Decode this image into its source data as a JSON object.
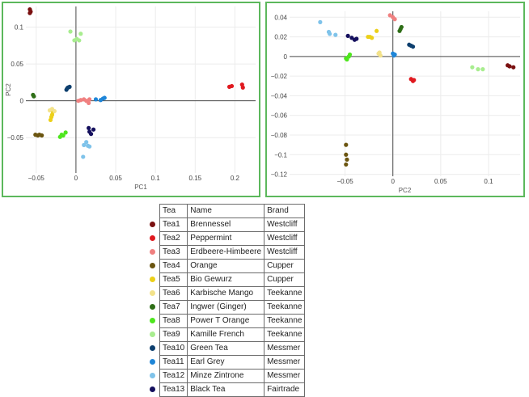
{
  "chart_data": [
    {
      "type": "scatter",
      "xlabel": "PC1",
      "ylabel": "PC2",
      "xlim": [
        -0.063,
        0.226
      ],
      "ylim": [
        -0.098,
        0.128
      ],
      "xticks": [
        -0.05,
        0,
        0.05,
        0.1,
        0.15,
        0.2
      ],
      "xtick_labels": [
        "−0.05",
        "0",
        "0.05",
        "0.1",
        "0.15",
        "0.2"
      ],
      "yticks": [
        -0.05,
        0,
        0.05,
        0.1
      ],
      "ytick_labels": [
        "−0.05",
        "0",
        "0.05",
        "0.1"
      ],
      "grid": true,
      "series": [
        {
          "name": "Tea1",
          "color": "#7a1010",
          "points": [
            [
              -0.058,
              0.124
            ],
            [
              -0.057,
              0.121
            ],
            [
              -0.058,
              0.119
            ]
          ]
        },
        {
          "name": "Tea2",
          "color": "#e0191f",
          "points": [
            [
              0.193,
              0.019
            ],
            [
              0.196,
              0.02
            ],
            [
              0.209,
              0.022
            ],
            [
              0.21,
              0.018
            ]
          ]
        },
        {
          "name": "Tea3",
          "color": "#f08080",
          "points": [
            [
              0.003,
              0.0
            ],
            [
              0.006,
              0.001
            ],
            [
              0.01,
              0.002
            ],
            [
              0.013,
              0.0
            ],
            [
              0.017,
              0.002
            ],
            [
              0.016,
              -0.003
            ]
          ]
        },
        {
          "name": "Tea4",
          "color": "#6b5510",
          "points": [
            [
              -0.051,
              -0.046
            ],
            [
              -0.048,
              -0.047
            ],
            [
              -0.046,
              -0.046
            ],
            [
              -0.043,
              -0.047
            ]
          ]
        },
        {
          "name": "Tea5",
          "color": "#ecd019",
          "points": [
            [
              -0.032,
              -0.026
            ],
            [
              -0.031,
              -0.022
            ],
            [
              -0.03,
              -0.019
            ],
            [
              -0.029,
              -0.015
            ]
          ]
        },
        {
          "name": "Tea6",
          "color": "#f3e28a",
          "points": [
            [
              -0.033,
              -0.013
            ],
            [
              -0.03,
              -0.011
            ],
            [
              -0.027,
              -0.014
            ]
          ]
        },
        {
          "name": "Tea7",
          "color": "#2e6e17",
          "points": [
            [
              -0.054,
              0.008
            ],
            [
              -0.053,
              0.006
            ]
          ]
        },
        {
          "name": "Tea8",
          "color": "#4ee61e",
          "points": [
            [
              -0.02,
              -0.049
            ],
            [
              -0.018,
              -0.046
            ],
            [
              -0.016,
              -0.047
            ],
            [
              -0.013,
              -0.043
            ]
          ]
        },
        {
          "name": "Tea9",
          "color": "#a8ed8f",
          "points": [
            [
              -0.007,
              0.094
            ],
            [
              -0.002,
              0.082
            ],
            [
              0.001,
              0.084
            ],
            [
              0.004,
              0.082
            ],
            [
              0.006,
              0.091
            ]
          ]
        },
        {
          "name": "Tea10",
          "color": "#0d3f6e",
          "points": [
            [
              -0.012,
              0.015
            ],
            [
              -0.01,
              0.018
            ],
            [
              -0.008,
              0.019
            ],
            [
              -0.011,
              0.017
            ]
          ]
        },
        {
          "name": "Tea11",
          "color": "#1f86d8",
          "points": [
            [
              0.025,
              0.002
            ],
            [
              0.031,
              0.001
            ],
            [
              0.034,
              0.003
            ],
            [
              0.036,
              0.004
            ]
          ]
        },
        {
          "name": "Tea12",
          "color": "#7fc3ea",
          "points": [
            [
              0.01,
              -0.06
            ],
            [
              0.013,
              -0.056
            ],
            [
              0.015,
              -0.061
            ],
            [
              0.017,
              -0.062
            ],
            [
              0.009,
              -0.076
            ]
          ]
        },
        {
          "name": "Tea13",
          "color": "#15105e",
          "points": [
            [
              0.016,
              -0.037
            ],
            [
              0.017,
              -0.042
            ],
            [
              0.019,
              -0.045
            ],
            [
              0.022,
              -0.039
            ]
          ]
        }
      ]
    },
    {
      "type": "scatter",
      "xlabel": "PC2",
      "ylabel": "",
      "xlim": [
        -0.108,
        0.133
      ],
      "ylim": [
        -0.122,
        0.046
      ],
      "xticks": [
        -0.05,
        0,
        0.05,
        0.1
      ],
      "xtick_labels": [
        "−0.05",
        "0",
        "0.05",
        "0.1"
      ],
      "yticks": [
        0.04,
        0.02,
        0,
        -0.02,
        -0.04,
        -0.06,
        -0.08,
        -0.1,
        -0.12
      ],
      "ytick_labels": [
        "0.04",
        "0.02",
        "0",
        "−0.02",
        "−0.04",
        "−0.06",
        "−0.08",
        "−0.1",
        "−0.12"
      ],
      "grid": true,
      "series": [
        {
          "name": "Tea1",
          "color": "#7a1010",
          "points": [
            [
              0.12,
              -0.009
            ],
            [
              0.122,
              -0.01
            ],
            [
              0.126,
              -0.011
            ]
          ]
        },
        {
          "name": "Tea2",
          "color": "#e0191f",
          "points": [
            [
              0.019,
              -0.023
            ],
            [
              0.021,
              -0.025
            ],
            [
              0.022,
              -0.024
            ]
          ]
        },
        {
          "name": "Tea3",
          "color": "#f08080",
          "points": [
            [
              -0.003,
              0.042
            ],
            [
              0.0,
              0.04
            ],
            [
              0.002,
              0.038
            ]
          ]
        },
        {
          "name": "Tea4",
          "color": "#6b5510",
          "points": [
            [
              -0.049,
              -0.09
            ],
            [
              -0.049,
              -0.1
            ],
            [
              -0.048,
              -0.105
            ],
            [
              -0.049,
              -0.11
            ]
          ]
        },
        {
          "name": "Tea5",
          "color": "#ecd019",
          "points": [
            [
              -0.026,
              0.02
            ],
            [
              -0.024,
              0.02
            ],
            [
              -0.022,
              0.019
            ],
            [
              -0.017,
              0.026
            ]
          ]
        },
        {
          "name": "Tea6",
          "color": "#f3e28a",
          "points": [
            [
              -0.015,
              0.003
            ],
            [
              -0.013,
              0.001
            ],
            [
              -0.014,
              0.004
            ]
          ]
        },
        {
          "name": "Tea7",
          "color": "#2e6e17",
          "points": [
            [
              0.007,
              0.026
            ],
            [
              0.008,
              0.028
            ],
            [
              0.009,
              0.03
            ]
          ]
        },
        {
          "name": "Tea8",
          "color": "#4ee61e",
          "points": [
            [
              -0.049,
              -0.002
            ],
            [
              -0.048,
              -0.003
            ],
            [
              -0.046,
              0.0
            ],
            [
              -0.045,
              0.002
            ]
          ]
        },
        {
          "name": "Tea9",
          "color": "#a8ed8f",
          "points": [
            [
              0.083,
              -0.011
            ],
            [
              0.089,
              -0.013
            ],
            [
              0.094,
              -0.013
            ]
          ]
        },
        {
          "name": "Tea10",
          "color": "#0d3f6e",
          "points": [
            [
              0.017,
              0.012
            ],
            [
              0.019,
              0.011
            ],
            [
              0.021,
              0.01
            ]
          ]
        },
        {
          "name": "Tea11",
          "color": "#1f86d8",
          "points": [
            [
              0.0,
              0.003
            ],
            [
              0.002,
              0.002
            ],
            [
              0.001,
              0.001
            ]
          ]
        },
        {
          "name": "Tea12",
          "color": "#7fc3ea",
          "points": [
            [
              -0.076,
              0.035
            ],
            [
              -0.067,
              0.025
            ],
            [
              -0.066,
              0.023
            ],
            [
              -0.06,
              0.022
            ]
          ]
        },
        {
          "name": "Tea13",
          "color": "#15105e",
          "points": [
            [
              -0.047,
              0.021
            ],
            [
              -0.043,
              0.019
            ],
            [
              -0.04,
              0.017
            ],
            [
              -0.038,
              0.018
            ]
          ]
        }
      ]
    }
  ],
  "legend": {
    "headers": [
      "Tea",
      "Name",
      "Brand"
    ],
    "rows": [
      {
        "color": "#7a1010",
        "tea": "Tea1",
        "name": "Brennessel",
        "brand": "Westcliff"
      },
      {
        "color": "#e0191f",
        "tea": "Tea2",
        "name": "Peppermint",
        "brand": "Westcliff"
      },
      {
        "color": "#f08080",
        "tea": "Tea3",
        "name": "Erdbeere-Himbeere",
        "brand": "Westcliff"
      },
      {
        "color": "#6b5510",
        "tea": "Tea4",
        "name": "Orange",
        "brand": "Cupper"
      },
      {
        "color": "#ecd019",
        "tea": "Tea5",
        "name": "Bio Gewurz",
        "brand": "Cupper"
      },
      {
        "color": "#f3e28a",
        "tea": "Tea6",
        "name": "Karbische Mango",
        "brand": "Teekanne"
      },
      {
        "color": "#2e6e17",
        "tea": "Tea7",
        "name": "Ingwer (Ginger)",
        "brand": "Teekanne"
      },
      {
        "color": "#4ee61e",
        "tea": "Tea8",
        "name": "Power T Orange",
        "brand": "Teekanne"
      },
      {
        "color": "#a8ed8f",
        "tea": "Tea9",
        "name": "Kamille French",
        "brand": "Teekanne"
      },
      {
        "color": "#0d3f6e",
        "tea": "Tea10",
        "name": "Green Tea",
        "brand": "Messmer"
      },
      {
        "color": "#1f86d8",
        "tea": "Tea11",
        "name": "Earl Grey",
        "brand": "Messmer"
      },
      {
        "color": "#7fc3ea",
        "tea": "Tea12",
        "name": "Minze Zintrone",
        "brand": "Messmer"
      },
      {
        "color": "#15105e",
        "tea": "Tea13",
        "name": "Black Tea",
        "brand": "Fairtrade"
      }
    ]
  }
}
